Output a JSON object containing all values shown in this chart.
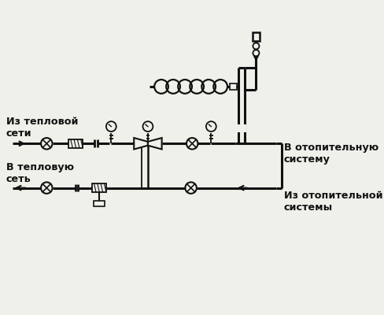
{
  "bg_color": "#f0f0eb",
  "line_color": "#111111",
  "text_color": "#111111",
  "lw_pipe": 2.2,
  "lw_thin": 1.3,
  "labels": {
    "from_network": "Из тепловой\nсети",
    "to_network": "В тепловую\nсеть",
    "to_heating": "В отопительную\nсистему",
    "from_heating": "Из отопительной\nсистемы"
  },
  "figsize": [
    4.88,
    4.0
  ],
  "dpi": 100
}
